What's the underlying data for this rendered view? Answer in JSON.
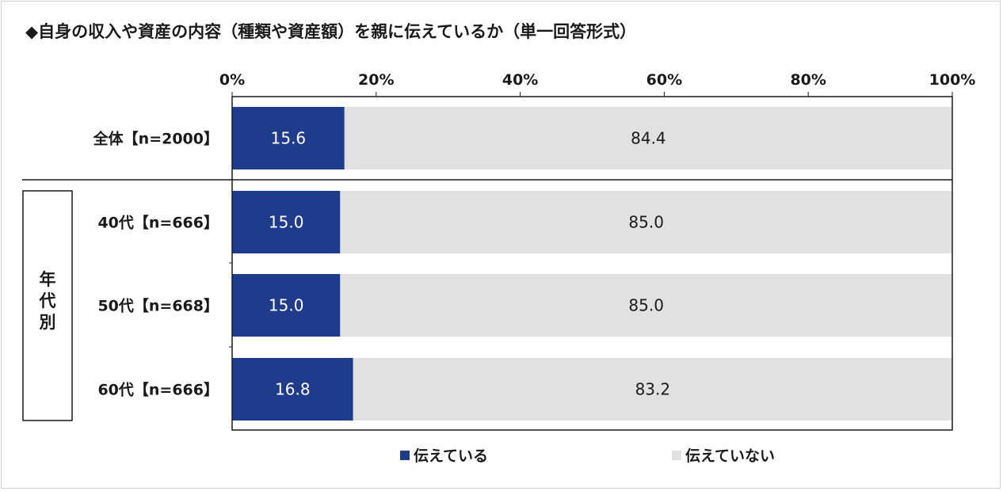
{
  "chart_data": {
    "type": "bar",
    "orientation": "horizontal",
    "stacked": true,
    "title": "◆自身の収入や資産の内容（種類や資産額）を親に伝えているか（単一回答形式）",
    "categories": [
      "全体【n=2000】",
      "40代【n=666】",
      "50代【n=668】",
      "60代【n=666】"
    ],
    "group_label": "年代別",
    "group_members": [
      1,
      2,
      3
    ],
    "x_ticks": [
      "0%",
      "20%",
      "40%",
      "60%",
      "80%",
      "100%"
    ],
    "xlim": [
      0,
      100
    ],
    "series": [
      {
        "name": "伝えている",
        "color": "#1f3c8c",
        "values": [
          15.6,
          15.0,
          15.0,
          16.8
        ],
        "labels": [
          "15.6",
          "15.0",
          "15.0",
          "16.8"
        ]
      },
      {
        "name": "伝えていない",
        "color": "#e1e1e1",
        "values": [
          84.4,
          85.0,
          85.0,
          83.2
        ],
        "labels": [
          "84.4",
          "85.0",
          "85.0",
          "83.2"
        ]
      }
    ],
    "legend_position": "bottom"
  }
}
